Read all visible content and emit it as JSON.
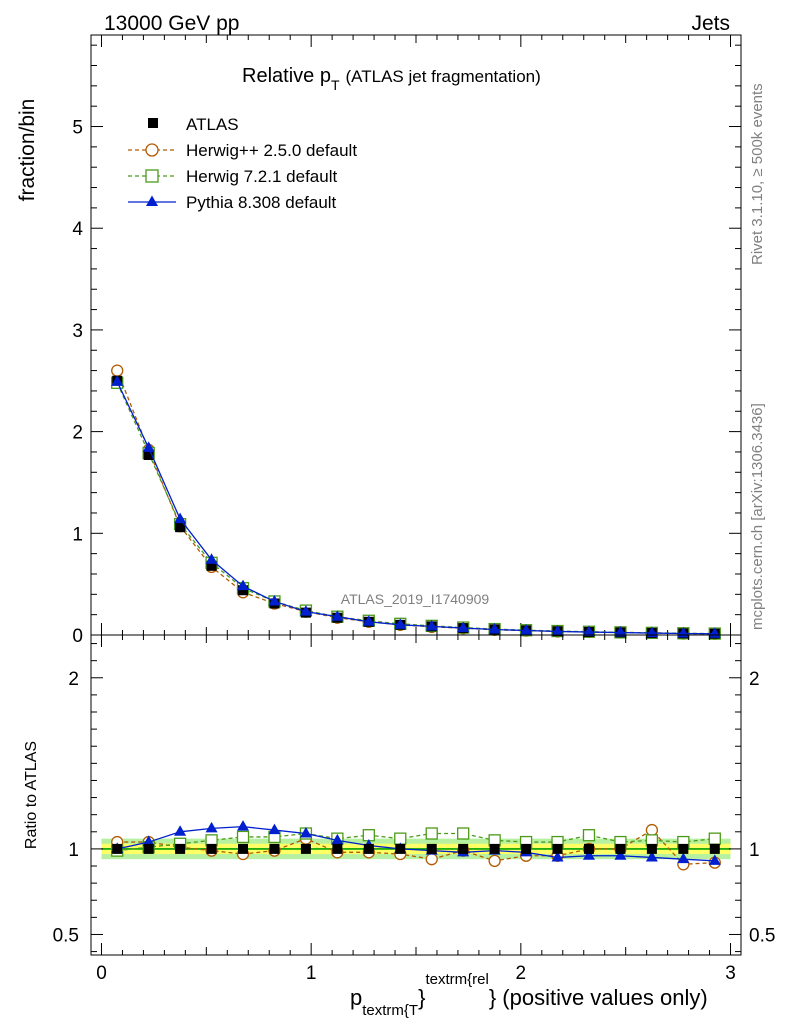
{
  "header": {
    "left": "13000 GeV pp",
    "right": "Jets"
  },
  "side_labels": {
    "rivet": "Rivet 3.1.10, ≥ 500k events",
    "mcplots": "mcplots.cern.ch [arXiv:1306.3436]"
  },
  "watermark": "ATLAS_2019_I1740909",
  "colors": {
    "atlas": "#000000",
    "herwig_pp": "#b25b00",
    "herwig7": "#4c9a1a",
    "pythia": "#0020d0",
    "band_inner": "#ffff66",
    "band_outer": "#b7f0a0",
    "ref_line": "#00a000"
  },
  "chart_data": [
    {
      "type": "line",
      "title_main": "Relative p",
      "title_sub": "T",
      "title_rest": "(ATLAS jet fragmentation)",
      "ylabel": "fraction/bin",
      "xlim": [
        -0.05,
        3.05
      ],
      "ylim": [
        0,
        5.9
      ],
      "yticks": [
        0,
        1,
        2,
        3,
        4,
        5
      ],
      "legend": {
        "placement": "top-left",
        "entries": [
          "ATLAS",
          "Herwig++ 2.5.0 default",
          "Herwig 7.2.1 default",
          "Pythia 8.308 default"
        ]
      },
      "x": [
        0.075,
        0.225,
        0.375,
        0.525,
        0.675,
        0.825,
        0.975,
        1.125,
        1.275,
        1.425,
        1.575,
        1.725,
        1.875,
        2.025,
        2.175,
        2.325,
        2.475,
        2.625,
        2.775,
        2.925
      ],
      "series": [
        {
          "name": "ATLAS",
          "values": [
            2.5,
            1.77,
            1.06,
            0.68,
            0.44,
            0.31,
            0.22,
            0.17,
            0.13,
            0.1,
            0.085,
            0.068,
            0.055,
            0.045,
            0.037,
            0.03,
            0.025,
            0.02,
            0.016,
            0.013
          ]
        },
        {
          "name": "Herwig++ 2.5.0 default",
          "values": [
            2.6,
            1.82,
            1.07,
            0.67,
            0.42,
            0.31,
            0.23,
            0.17,
            0.13,
            0.1,
            0.08,
            0.067,
            0.051,
            0.043,
            0.035,
            0.03,
            0.025,
            0.021,
            0.015,
            0.012
          ]
        },
        {
          "name": "Herwig 7.2.1 default",
          "values": [
            2.48,
            1.79,
            1.09,
            0.71,
            0.46,
            0.33,
            0.24,
            0.18,
            0.14,
            0.11,
            0.09,
            0.073,
            0.058,
            0.047,
            0.039,
            0.032,
            0.026,
            0.021,
            0.017,
            0.014
          ]
        },
        {
          "name": "Pythia 8.308 default",
          "values": [
            2.49,
            1.84,
            1.14,
            0.74,
            0.48,
            0.33,
            0.23,
            0.18,
            0.13,
            0.1,
            0.085,
            0.068,
            0.054,
            0.044,
            0.035,
            0.029,
            0.024,
            0.019,
            0.015,
            0.012
          ]
        }
      ]
    },
    {
      "type": "line",
      "ylabel": "Ratio to ATLAS",
      "xlabel": "p",
      "xlabel_sub": "textrm{T",
      "xlabel_brace": "}",
      "xlabel_sup": "textrm{rel",
      "xlabel_rest": "} (positive values only)",
      "xlim": [
        -0.05,
        3.05
      ],
      "ylim": [
        0.38,
        2.25
      ],
      "xticks": [
        0,
        1,
        2,
        3
      ],
      "yticks": [
        0.5,
        1,
        2
      ],
      "x": [
        0.075,
        0.225,
        0.375,
        0.525,
        0.675,
        0.825,
        0.975,
        1.125,
        1.275,
        1.425,
        1.575,
        1.725,
        1.875,
        2.025,
        2.175,
        2.325,
        2.475,
        2.625,
        2.775,
        2.925
      ],
      "band_inner": 0.03,
      "band_outer": 0.06,
      "series": [
        {
          "name": "Herwig++ 2.5.0 default",
          "values": [
            1.04,
            1.04,
            1.01,
            0.99,
            0.97,
            0.99,
            1.06,
            0.98,
            0.98,
            0.97,
            0.94,
            0.99,
            0.93,
            0.96,
            0.96,
            1.0,
            1.0,
            1.11,
            0.91,
            0.92
          ]
        },
        {
          "name": "Herwig 7.2.1 default",
          "values": [
            0.99,
            1.01,
            1.03,
            1.05,
            1.07,
            1.07,
            1.09,
            1.06,
            1.08,
            1.06,
            1.09,
            1.09,
            1.05,
            1.04,
            1.04,
            1.08,
            1.04,
            1.05,
            1.04,
            1.06
          ]
        },
        {
          "name": "Pythia 8.308 default",
          "values": [
            1.0,
            1.04,
            1.1,
            1.12,
            1.13,
            1.11,
            1.09,
            1.05,
            1.02,
            1.0,
            0.99,
            0.98,
            0.99,
            0.98,
            0.95,
            0.96,
            0.96,
            0.95,
            0.94,
            0.93
          ]
        }
      ]
    }
  ]
}
